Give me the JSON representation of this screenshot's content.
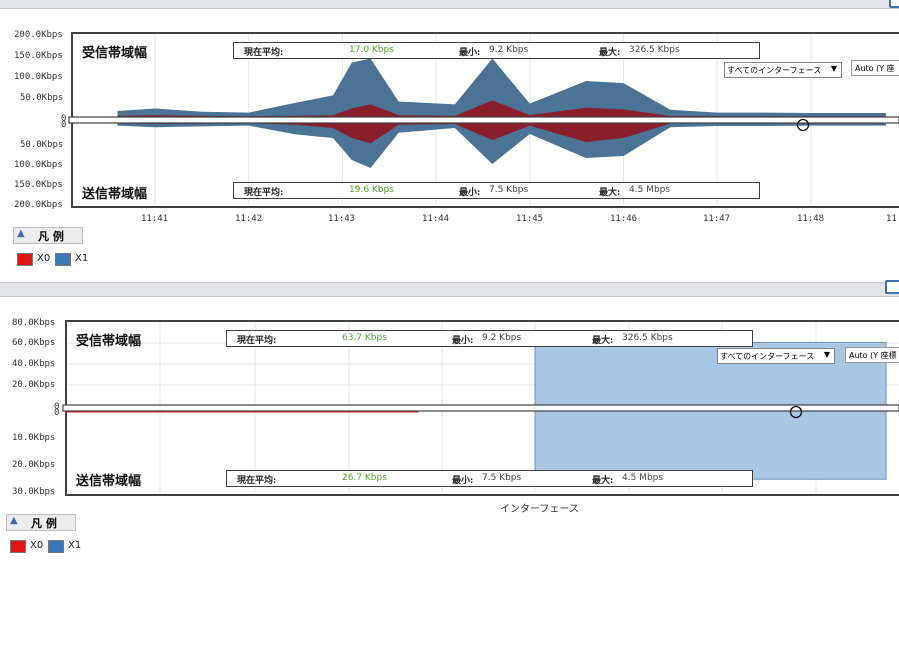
{
  "colors": {
    "rx_blue": "#4a7396",
    "rx_red": "#8a1e2b",
    "x0": "#e01616",
    "x1": "#3a78b8",
    "green": "#55a52e",
    "area_blue": "#a9c6e3"
  },
  "chart1": {
    "y_ticks_top": [
      "200.0Kbps",
      "150.0Kbps",
      "100.0Kbps",
      "50.0Kbps",
      "0"
    ],
    "y_ticks_bottom": [
      "0",
      "50.0Kbps",
      "100.0Kbps",
      "150.0Kbps",
      "200.0Kbps"
    ],
    "x_ticks": [
      "11:41",
      "11:42",
      "11:43",
      "11:44",
      "11:45",
      "11:46",
      "11:47",
      "11:48",
      "11:"
    ],
    "rx_title": "受信帯域幅",
    "tx_title": "送信帯域幅",
    "rx_stats": {
      "avg_label": "現在平均:",
      "avg_value": "17.0 Kbps",
      "min_label": "最小:",
      "min_value": "9.2 Kbps",
      "max_label": "最大:",
      "max_value": "326.5 Kbps"
    },
    "tx_stats": {
      "avg_label": "現在平均:",
      "avg_value": "19.6 Kbps",
      "min_label": "最小:",
      "min_value": "7.5 Kbps",
      "max_label": "最大:",
      "max_value": "4.5 Mbps"
    },
    "interface_select": "すべてのインターフェース",
    "auto_label": "Auto (Y 座"
  },
  "chart2": {
    "y_ticks_top": [
      "80.0Kbps",
      "60.0Kbps",
      "40.0Kbps",
      "20.0Kbps",
      "0"
    ],
    "y_ticks_bottom": [
      "0",
      "10.0Kbps",
      "20.0Kbps",
      "30.0Kbps"
    ],
    "rx_title": "受信帯域幅",
    "tx_title": "送信帯域幅",
    "rx_stats": {
      "avg_label": "現在平均:",
      "avg_value": "63.7 Kbps",
      "min_label": "最小:",
      "min_value": "9.2 Kbps",
      "max_label": "最大:",
      "max_value": "326.5 Kbps"
    },
    "tx_stats": {
      "avg_label": "現在平均:",
      "avg_value": "26.7 Kbps",
      "min_label": "最小:",
      "min_value": "7.5 Kbps",
      "max_label": "最大:",
      "max_value": "4.5 Mbps"
    },
    "interface_select": "すべてのインターフェース",
    "auto_label": "Auto (Y 座標",
    "x_axis_title": "インターフェース"
  },
  "legend": {
    "button_label": "凡 例",
    "toggle_icon": "collapse-up-icon",
    "items": [
      "X0",
      "X1"
    ]
  },
  "chart_data": [
    {
      "type": "area",
      "x_unit": "time",
      "x_ticks": [
        "11:41",
        "11:42",
        "11:43",
        "11:44",
        "11:45",
        "11:46",
        "11:47",
        "11:48"
      ],
      "y_unit": "Kbps",
      "ylim_rx": [
        0,
        200
      ],
      "ylim_tx": [
        0,
        200
      ],
      "series": [
        {
          "name": "X0",
          "direction": "rx",
          "x": [
            "11:40.6",
            "11:41.0",
            "11:41.5",
            "11:42.0",
            "11:42.5",
            "11:42.9",
            "11:43.1",
            "11:43.3",
            "11:43.6",
            "11:44.2",
            "11:44.6",
            "11:45.0",
            "11:45.6",
            "11:46.0",
            "11:46.5",
            "11:47.0",
            "11:47.5",
            "11:48.0",
            "11:48.8"
          ],
          "values": [
            10,
            12,
            10,
            9,
            10,
            12,
            28,
            38,
            12,
            10,
            48,
            12,
            30,
            26,
            10,
            9,
            9,
            9,
            9
          ]
        },
        {
          "name": "X1",
          "direction": "rx",
          "x": [
            "11:40.6",
            "11:41.0",
            "11:41.5",
            "11:42.0",
            "11:42.5",
            "11:42.9",
            "11:43.1",
            "11:43.3",
            "11:43.6",
            "11:44.2",
            "11:44.6",
            "11:45.0",
            "11:45.6",
            "11:46.0",
            "11:46.5",
            "11:47.0",
            "11:47.5",
            "11:48.0",
            "11:48.8"
          ],
          "values": [
            22,
            28,
            20,
            18,
            42,
            60,
            140,
            150,
            45,
            38,
            150,
            40,
            95,
            90,
            25,
            18,
            18,
            17,
            17
          ]
        },
        {
          "name": "X0",
          "direction": "tx",
          "x": [
            "11:40.6",
            "11:41.0",
            "11:41.5",
            "11:42.0",
            "11:42.5",
            "11:42.9",
            "11:43.1",
            "11:43.3",
            "11:43.6",
            "11:44.2",
            "11:44.6",
            "11:45.0",
            "11:45.6",
            "11:46.0",
            "11:46.5",
            "11:47.0",
            "11:47.5",
            "11:48.0",
            "11:48.8"
          ],
          "values": [
            8,
            10,
            9,
            8,
            12,
            20,
            45,
            58,
            12,
            10,
            50,
            14,
            55,
            45,
            9,
            8,
            8,
            8,
            8
          ]
        },
        {
          "name": "X1",
          "direction": "tx",
          "x": [
            "11:40.6",
            "11:41.0",
            "11:41.5",
            "11:42.0",
            "11:42.5",
            "11:42.9",
            "11:43.1",
            "11:43.3",
            "11:43.6",
            "11:44.2",
            "11:44.6",
            "11:45.0",
            "11:45.6",
            "11:46.0",
            "11:46.5",
            "11:47.0",
            "11:47.5",
            "11:48.0",
            "11:48.8"
          ],
          "values": [
            14,
            18,
            16,
            14,
            36,
            45,
            100,
            120,
            32,
            20,
            110,
            35,
            95,
            90,
            18,
            15,
            15,
            14,
            14
          ]
        }
      ]
    },
    {
      "type": "bar",
      "categories": [
        "X0",
        "X1"
      ],
      "xlabel": "インターフェース",
      "ylim_rx": [
        0,
        80
      ],
      "ylim_tx": [
        0,
        30
      ],
      "series": [
        {
          "name": "rx",
          "values": [
            1.5,
            64
          ]
        },
        {
          "name": "tx",
          "values": [
            1.5,
            26.7
          ]
        }
      ]
    }
  ]
}
